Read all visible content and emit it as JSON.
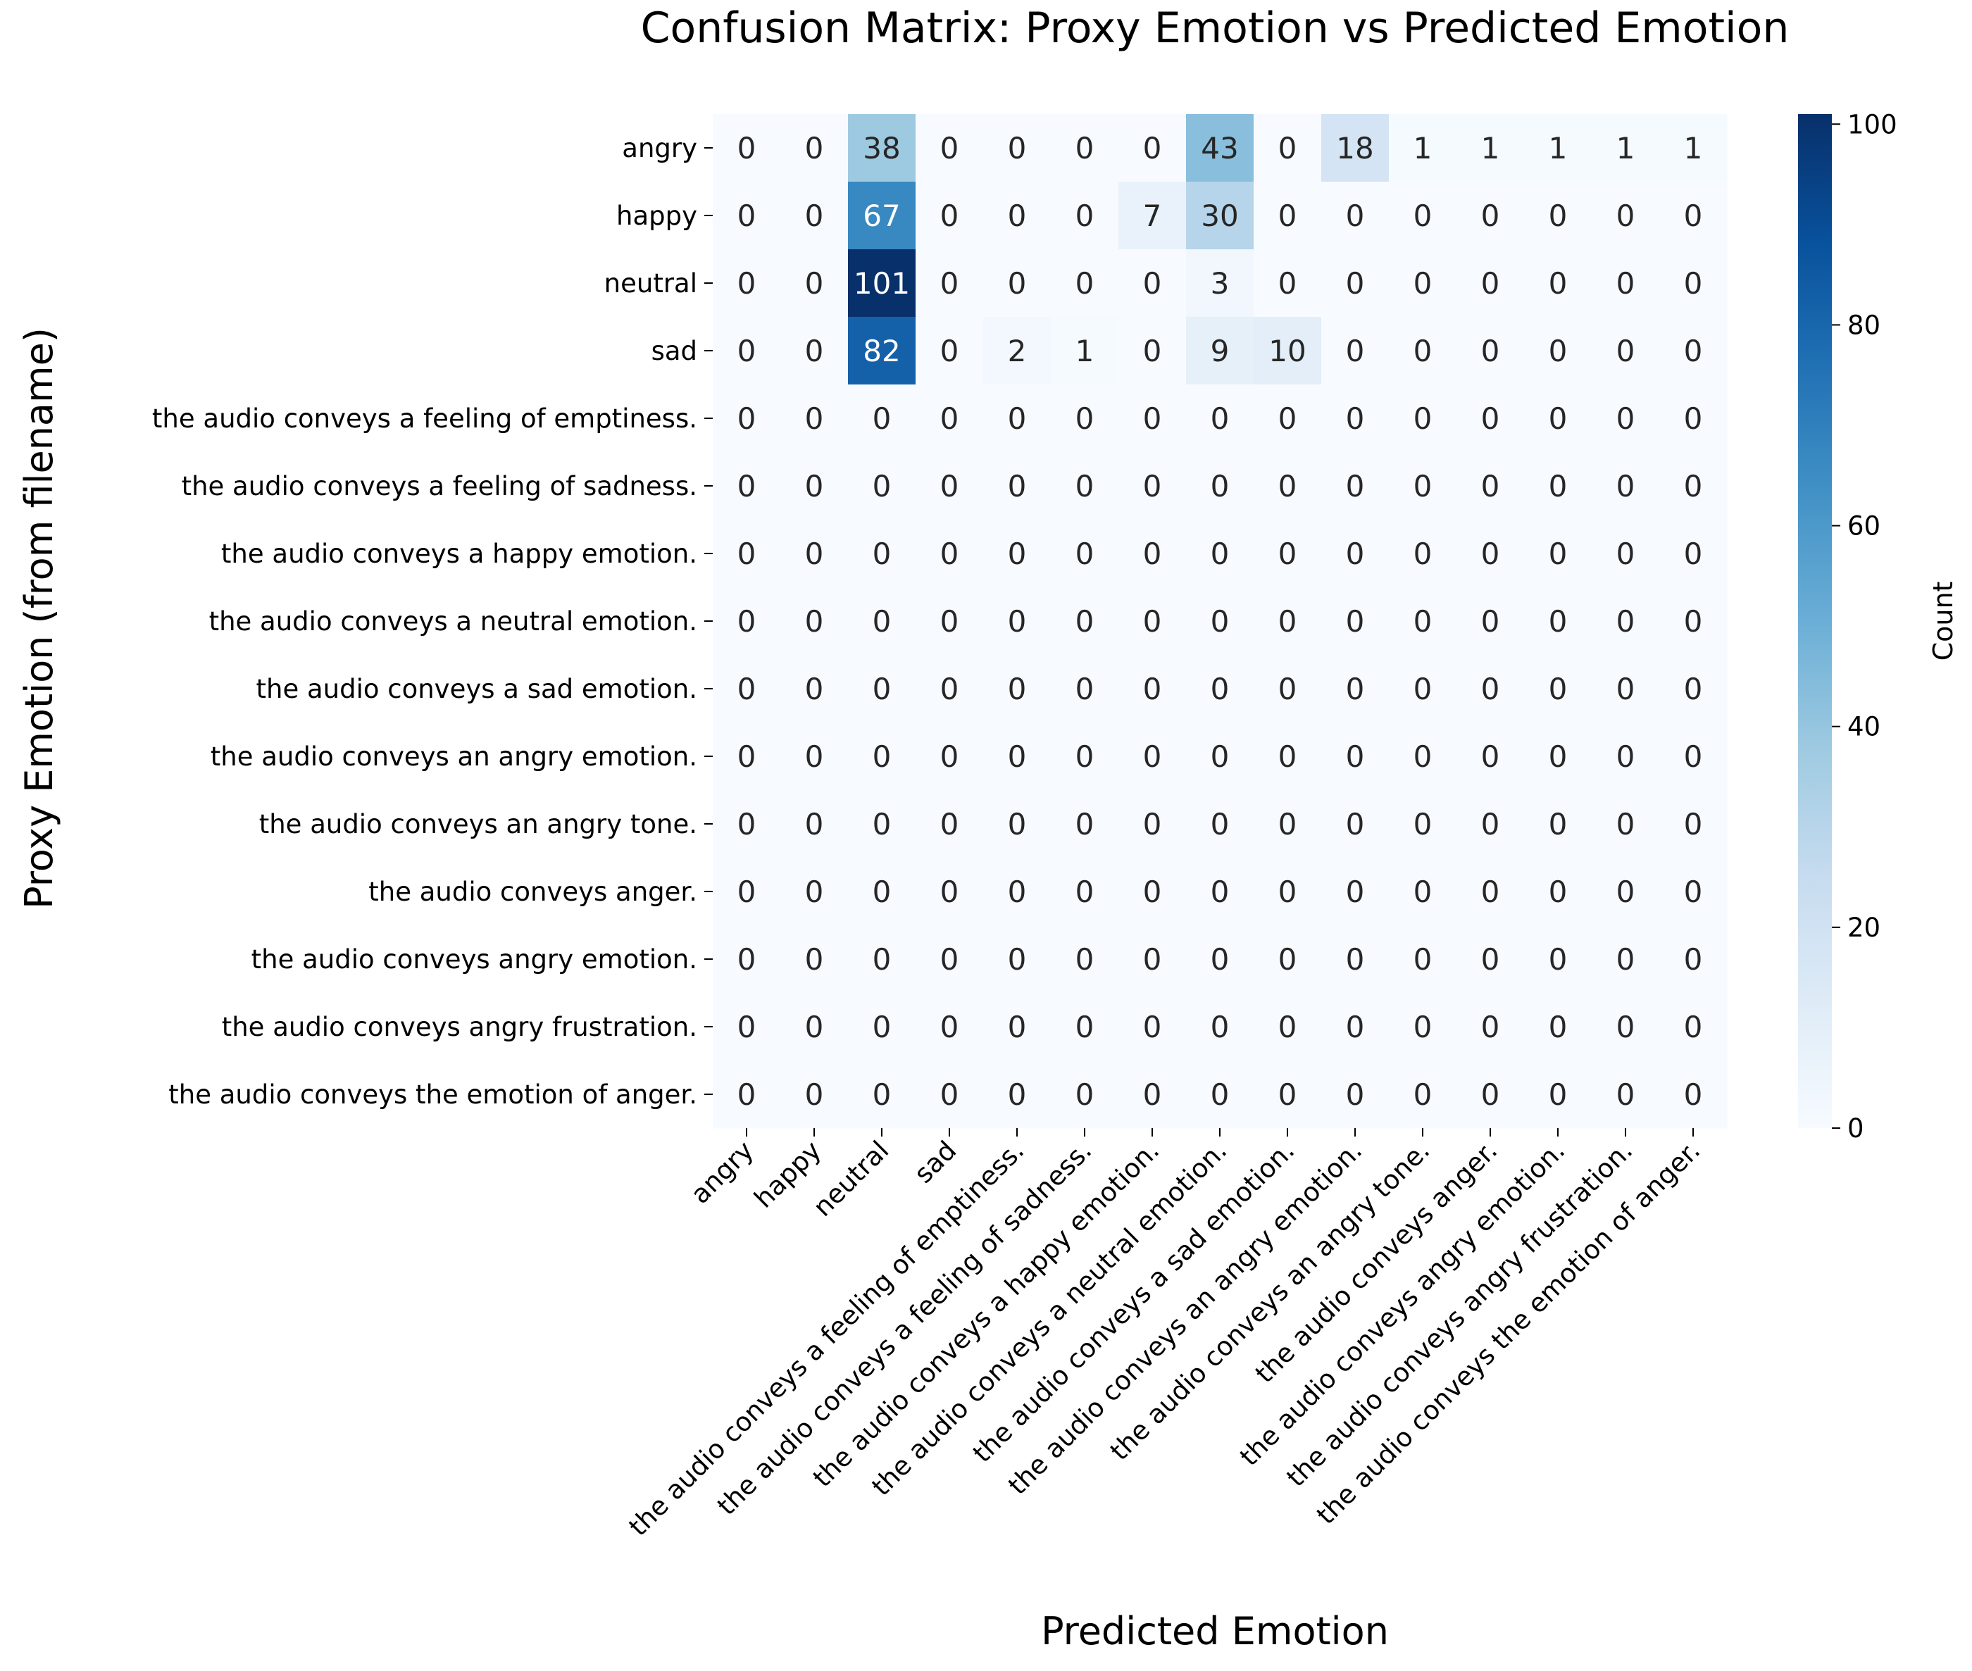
{
  "chart_data": {
    "type": "heatmap",
    "title": "Confusion Matrix: Proxy Emotion vs Predicted Emotion",
    "xlabel": "Predicted Emotion",
    "ylabel": "Proxy Emotion (from filename)",
    "colorbar_label": "Count",
    "colormap": "Blues",
    "color_range": [
      0,
      101
    ],
    "colorbar_ticks": [
      0,
      20,
      40,
      60,
      80,
      100
    ],
    "x_categories": [
      "angry",
      "happy",
      "neutral",
      "sad",
      "the audio conveys a feeling of emptiness.",
      "the audio conveys a feeling of sadness.",
      "the audio conveys a happy emotion.",
      "the audio conveys a neutral emotion.",
      "the audio conveys a sad emotion.",
      "the audio conveys an angry emotion.",
      "the audio conveys an angry tone.",
      "the audio conveys anger.",
      "the audio conveys angry emotion.",
      "the audio conveys angry frustration.",
      "the audio conveys the emotion of anger."
    ],
    "y_categories": [
      "angry",
      "happy",
      "neutral",
      "sad",
      "the audio conveys a feeling of emptiness.",
      "the audio conveys a feeling of sadness.",
      "the audio conveys a happy emotion.",
      "the audio conveys a neutral emotion.",
      "the audio conveys a sad emotion.",
      "the audio conveys an angry emotion.",
      "the audio conveys an angry tone.",
      "the audio conveys anger.",
      "the audio conveys angry emotion.",
      "the audio conveys angry frustration.",
      "the audio conveys the emotion of anger."
    ],
    "values": [
      [
        0,
        0,
        38,
        0,
        0,
        0,
        0,
        43,
        0,
        18,
        1,
        1,
        1,
        1,
        1
      ],
      [
        0,
        0,
        67,
        0,
        0,
        0,
        7,
        30,
        0,
        0,
        0,
        0,
        0,
        0,
        0
      ],
      [
        0,
        0,
        101,
        0,
        0,
        0,
        0,
        3,
        0,
        0,
        0,
        0,
        0,
        0,
        0
      ],
      [
        0,
        0,
        82,
        0,
        2,
        1,
        0,
        9,
        10,
        0,
        0,
        0,
        0,
        0,
        0
      ],
      [
        0,
        0,
        0,
        0,
        0,
        0,
        0,
        0,
        0,
        0,
        0,
        0,
        0,
        0,
        0
      ],
      [
        0,
        0,
        0,
        0,
        0,
        0,
        0,
        0,
        0,
        0,
        0,
        0,
        0,
        0,
        0
      ],
      [
        0,
        0,
        0,
        0,
        0,
        0,
        0,
        0,
        0,
        0,
        0,
        0,
        0,
        0,
        0
      ],
      [
        0,
        0,
        0,
        0,
        0,
        0,
        0,
        0,
        0,
        0,
        0,
        0,
        0,
        0,
        0
      ],
      [
        0,
        0,
        0,
        0,
        0,
        0,
        0,
        0,
        0,
        0,
        0,
        0,
        0,
        0,
        0
      ],
      [
        0,
        0,
        0,
        0,
        0,
        0,
        0,
        0,
        0,
        0,
        0,
        0,
        0,
        0,
        0
      ],
      [
        0,
        0,
        0,
        0,
        0,
        0,
        0,
        0,
        0,
        0,
        0,
        0,
        0,
        0,
        0
      ],
      [
        0,
        0,
        0,
        0,
        0,
        0,
        0,
        0,
        0,
        0,
        0,
        0,
        0,
        0,
        0
      ],
      [
        0,
        0,
        0,
        0,
        0,
        0,
        0,
        0,
        0,
        0,
        0,
        0,
        0,
        0,
        0
      ],
      [
        0,
        0,
        0,
        0,
        0,
        0,
        0,
        0,
        0,
        0,
        0,
        0,
        0,
        0,
        0
      ],
      [
        0,
        0,
        0,
        0,
        0,
        0,
        0,
        0,
        0,
        0,
        0,
        0,
        0,
        0,
        0
      ]
    ]
  }
}
